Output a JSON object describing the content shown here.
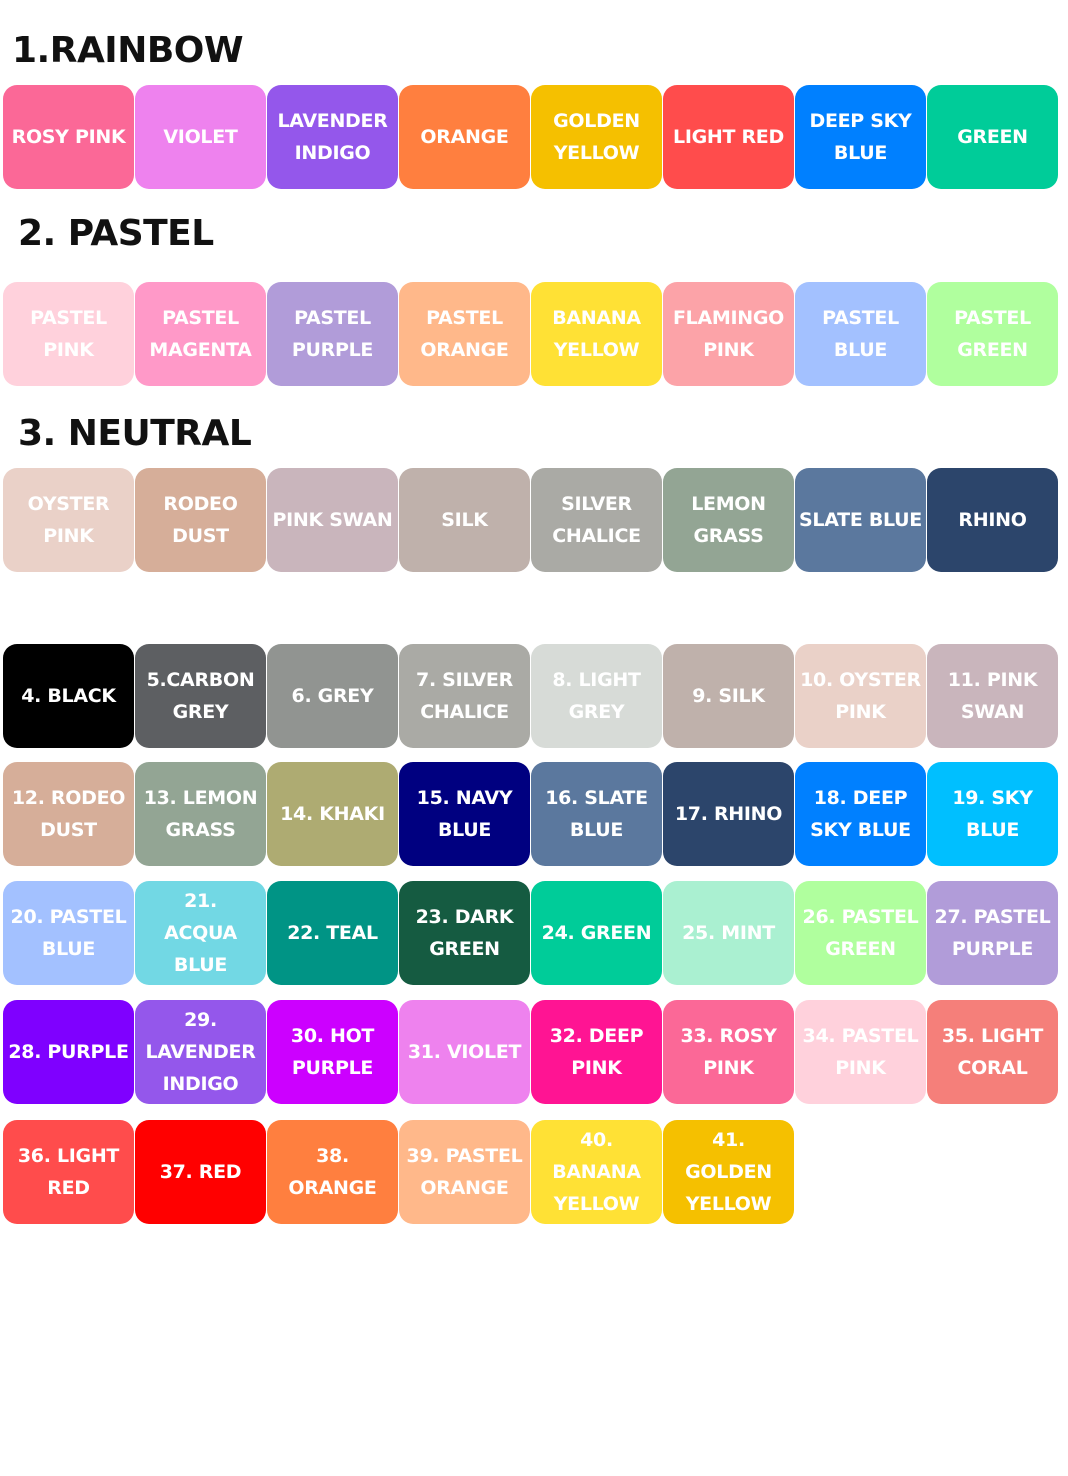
{
  "sections": [
    {
      "title": "1.RAINBOW",
      "swatches": [
        {
          "label": "ROSY PINK",
          "color": "#fb6897"
        },
        {
          "label": "VIOLET",
          "color": "#ee82ee"
        },
        {
          "label": "LAVENDER\nINDIGO",
          "color": "#9457eb"
        },
        {
          "label": "ORANGE",
          "color": "#ff7f3f"
        },
        {
          "label": "GOLDEN\nYELLOW",
          "color": "#f5c000"
        },
        {
          "label": "LIGHT RED",
          "color": "#ff4c4c"
        },
        {
          "label": "DEEP SKY\nBLUE",
          "color": "#0080ff"
        },
        {
          "label": "GREEN",
          "color": "#00cc99"
        }
      ]
    },
    {
      "title": "2. PASTEL",
      "swatches": [
        {
          "label": "PASTEL\nPINK",
          "color": "#ffd1dc"
        },
        {
          "label": "PASTEL\nMAGENTA",
          "color": "#ff99c8"
        },
        {
          "label": "PASTEL\nPURPLE",
          "color": "#b19cd9"
        },
        {
          "label": "PASTEL\nORANGE",
          "color": "#ffb88a"
        },
        {
          "label": "BANANA\nYELLOW",
          "color": "#ffe135"
        },
        {
          "label": "FLAMINGO\nPINK",
          "color": "#fca3a8"
        },
        {
          "label": "PASTEL\nBLUE",
          "color": "#a3c1ff"
        },
        {
          "label": "PASTEL\nGREEN",
          "color": "#b0ff9e"
        }
      ]
    },
    {
      "title": "3. NEUTRAL",
      "swatches": [
        {
          "label": "OYSTER\nPINK",
          "color": "#ead1c8"
        },
        {
          "label": "RODEO\nDUST",
          "color": "#d6ae99"
        },
        {
          "label": "PINK SWAN",
          "color": "#c9b5bc"
        },
        {
          "label": "SILK",
          "color": "#bfb1ab"
        },
        {
          "label": "SILVER\nCHALICE",
          "color": "#aaaaa5"
        },
        {
          "label": "LEMON\nGRASS",
          "color": "#93a594"
        },
        {
          "label": "SLATE BLUE",
          "color": "#5b789e"
        },
        {
          "label": "RHINO",
          "color": "#2c456b"
        }
      ]
    }
  ],
  "numbered": [
    {
      "label": "4. BLACK",
      "color": "#000000"
    },
    {
      "label": "5.CARBON\nGREY",
      "color": "#5d5f62"
    },
    {
      "label": "6. GREY",
      "color": "#919491"
    },
    {
      "label": "7. SILVER\nCHALICE",
      "color": "#aaaaa5"
    },
    {
      "label": "8. LIGHT\nGREY",
      "color": "#d7dbd7"
    },
    {
      "label": "9. SILK",
      "color": "#bfb1ab"
    },
    {
      "label": "10. OYSTER\nPINK",
      "color": "#ead1c8"
    },
    {
      "label": "11. PINK\nSWAN",
      "color": "#c9b5bc"
    },
    {
      "label": "12. RODEO\nDUST",
      "color": "#d6ae99"
    },
    {
      "label": "13. LEMON\nGRASS",
      "color": "#93a594"
    },
    {
      "label": "14. KHAKI",
      "color": "#aeab72"
    },
    {
      "label": "15. NAVY\nBLUE",
      "color": "#000080"
    },
    {
      "label": "16. SLATE\nBLUE",
      "color": "#5b789e"
    },
    {
      "label": "17. RHINO",
      "color": "#2c456b"
    },
    {
      "label": "18. DEEP\nSKY BLUE",
      "color": "#0080ff"
    },
    {
      "label": "19. SKY\nBLUE",
      "color": "#00bfff"
    },
    {
      "label": "20. PASTEL\nBLUE",
      "color": "#a3c1ff"
    },
    {
      "label": "21.\nACQUA\nBLUE",
      "color": "#72d8e4"
    },
    {
      "label": "22. TEAL",
      "color": "#009485"
    },
    {
      "label": "23. DARK\nGREEN",
      "color": "#155b41"
    },
    {
      "label": "24. GREEN",
      "color": "#00cc99"
    },
    {
      "label": "25. MINT",
      "color": "#aaf0d1"
    },
    {
      "label": "26. PASTEL\nGREEN",
      "color": "#b0ff9e"
    },
    {
      "label": "27. PASTEL\nPURPLE",
      "color": "#b19cd9"
    },
    {
      "label": "28. PURPLE",
      "color": "#7f00ff"
    },
    {
      "label": "29.\nLAVENDER\nINDIGO",
      "color": "#9457eb"
    },
    {
      "label": "30. HOT\nPURPLE",
      "color": "#cc00ff"
    },
    {
      "label": "31. VIOLET",
      "color": "#ee82ee"
    },
    {
      "label": "32. DEEP\nPINK",
      "color": "#ff1493"
    },
    {
      "label": "33. ROSY\nPINK",
      "color": "#fb6897"
    },
    {
      "label": "34. PASTEL\nPINK",
      "color": "#ffd1dc"
    },
    {
      "label": "35. LIGHT\nCORAL",
      "color": "#f57f7a"
    },
    {
      "label": "36. LIGHT\nRED",
      "color": "#ff4c4c"
    },
    {
      "label": "37. RED",
      "color": "#ff0000"
    },
    {
      "label": "38.\nORANGE",
      "color": "#ff7f3f"
    },
    {
      "label": "39. PASTEL\nORANGE",
      "color": "#ffb88a"
    },
    {
      "label": "40. BANANA\nYELLOW",
      "color": "#ffe135"
    },
    {
      "label": "41.\nGOLDEN\nYELLOW",
      "color": "#f5c000"
    }
  ]
}
